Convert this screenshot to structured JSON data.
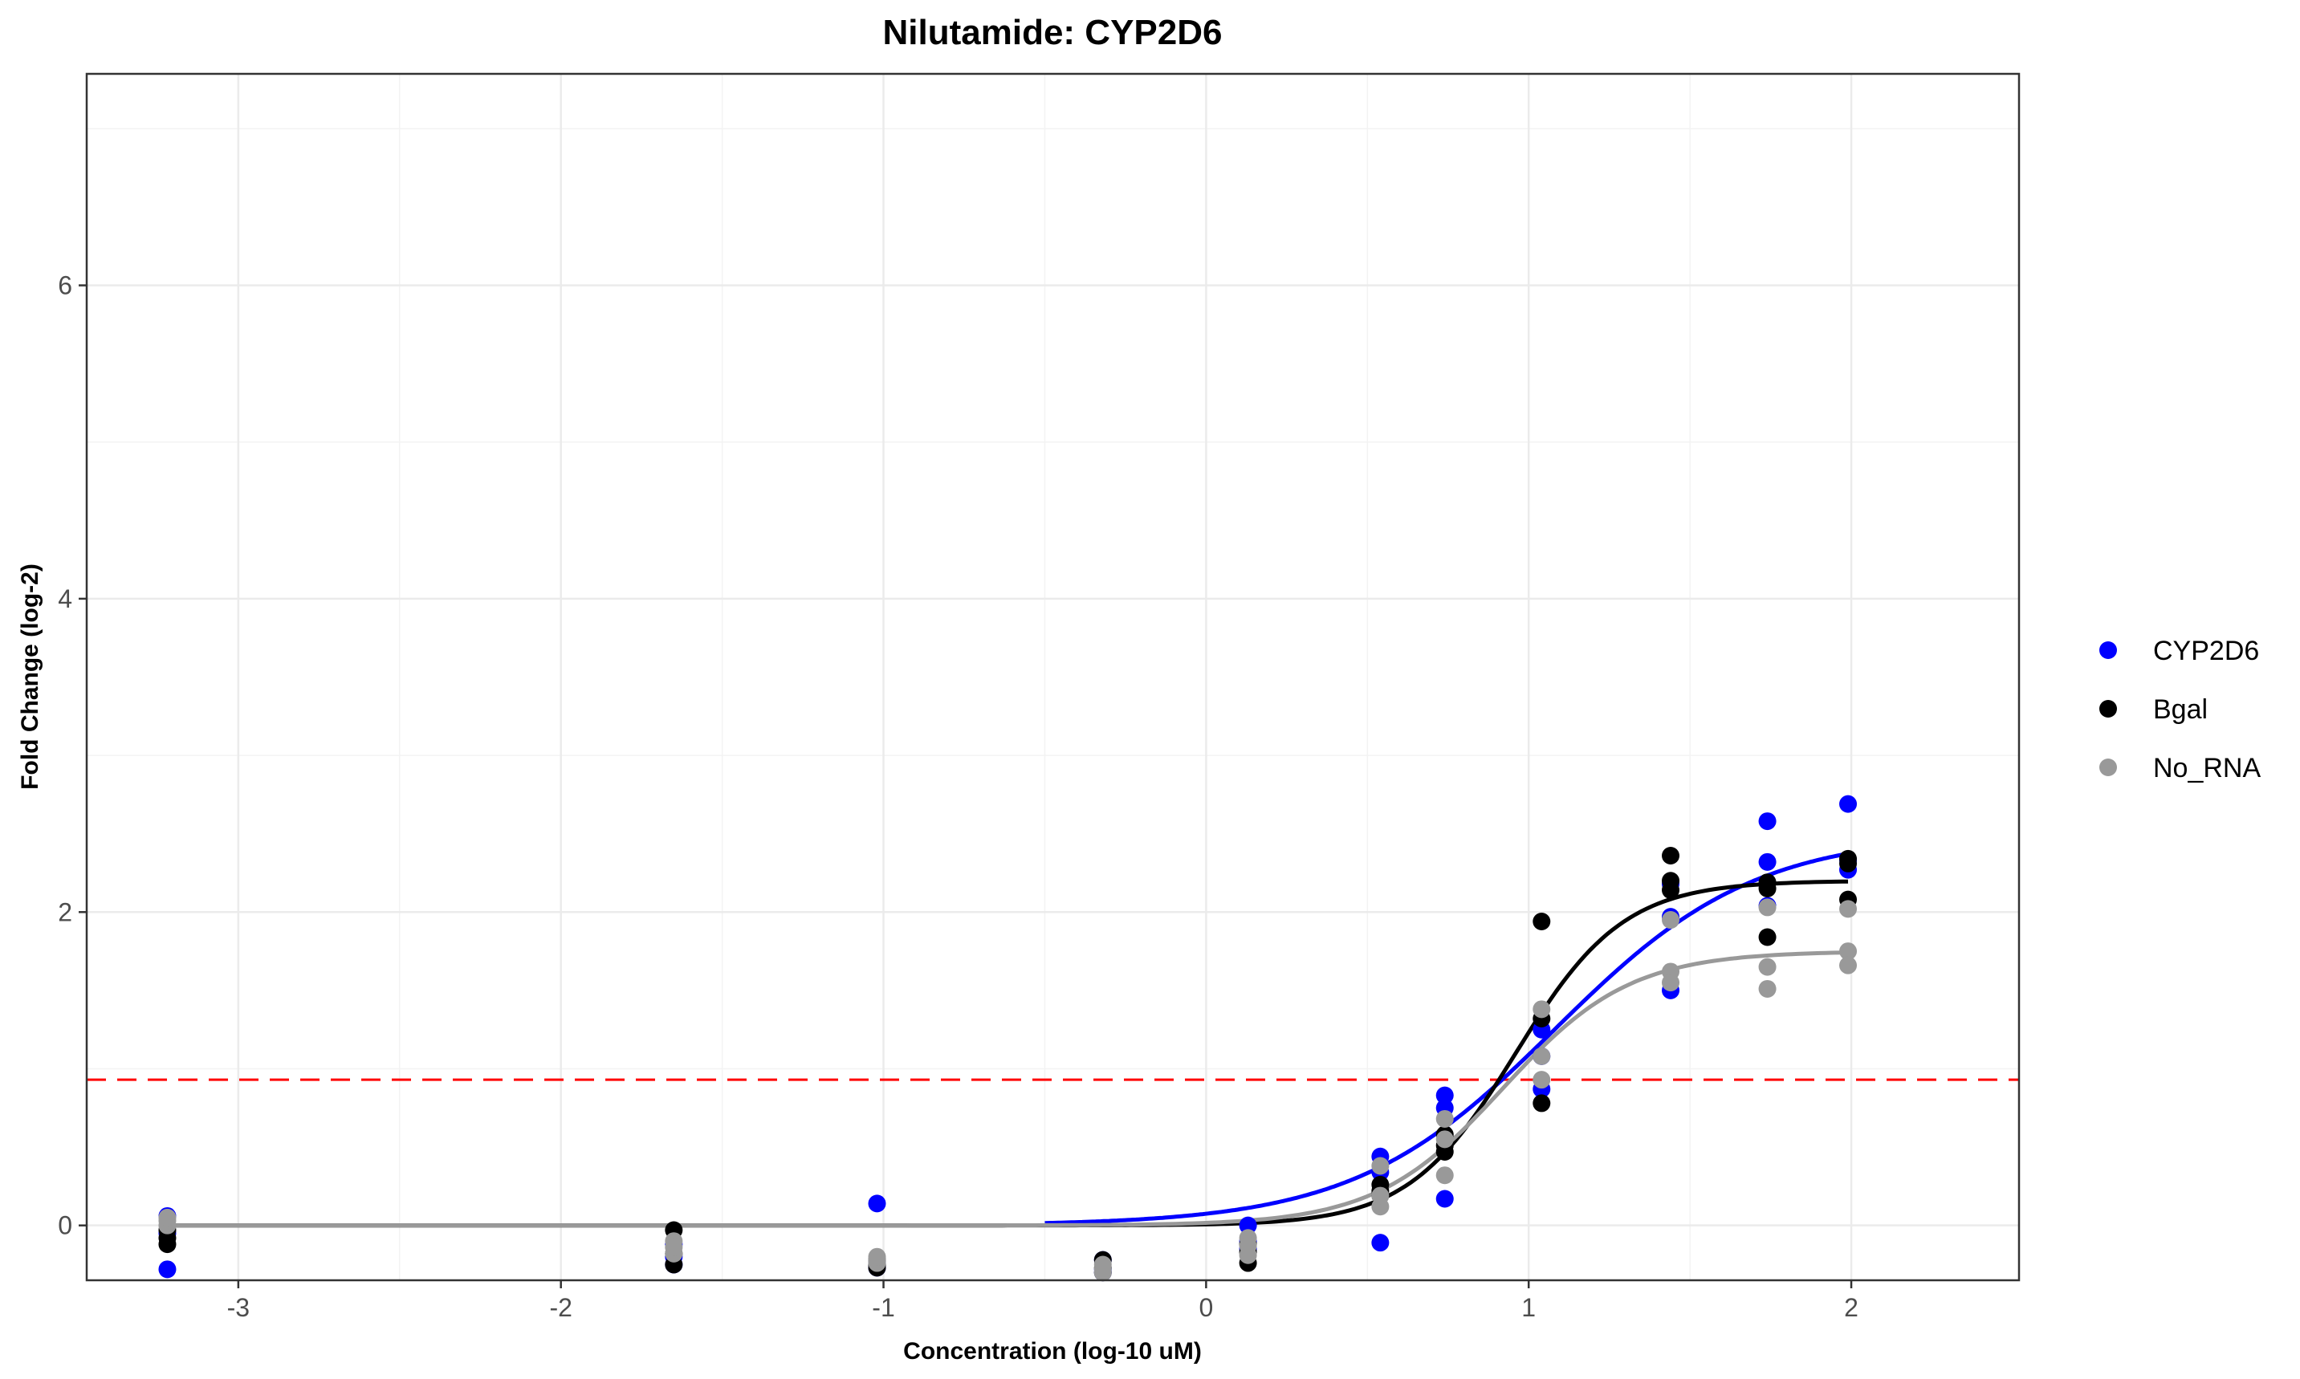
{
  "chart_data": {
    "type": "scatter",
    "title": "Nilutamide: CYP2D6",
    "xlabel": "Concentration (log-10 uM)",
    "ylabel": "Fold Change (log-2)",
    "xlim": [
      -3.47,
      2.52
    ],
    "ylim": [
      -0.35,
      7.35
    ],
    "x_ticks": [
      -3,
      -2,
      -1,
      0,
      1,
      2
    ],
    "y_ticks": [
      0,
      2,
      4,
      6
    ],
    "grid": true,
    "legend_position": "right",
    "threshold_line": {
      "y": 0.93,
      "color": "#ff0000",
      "style": "dashed"
    },
    "series": [
      {
        "name": "CYP2D6",
        "color": "#0000ff",
        "points": [
          [
            -3.22,
            0.06
          ],
          [
            -3.22,
            -0.28
          ],
          [
            -3.22,
            -0.05
          ],
          [
            -1.65,
            -0.12
          ],
          [
            -1.65,
            -0.2
          ],
          [
            -1.65,
            -0.25
          ],
          [
            -1.02,
            0.14
          ],
          [
            -1.02,
            -0.27
          ],
          [
            -1.02,
            -0.24
          ],
          [
            -0.32,
            -0.22
          ],
          [
            -0.32,
            -0.28
          ],
          [
            -0.32,
            -0.3
          ],
          [
            0.13,
            0.0
          ],
          [
            0.13,
            -0.1
          ],
          [
            0.13,
            -0.15
          ],
          [
            0.54,
            0.44
          ],
          [
            0.54,
            -0.11
          ],
          [
            0.54,
            0.34
          ],
          [
            0.74,
            0.83
          ],
          [
            0.74,
            0.75
          ],
          [
            0.74,
            0.17
          ],
          [
            1.04,
            1.25
          ],
          [
            1.04,
            0.87
          ],
          [
            1.04,
            1.08
          ],
          [
            1.44,
            2.18
          ],
          [
            1.44,
            1.5
          ],
          [
            1.44,
            1.97
          ],
          [
            1.74,
            2.58
          ],
          [
            1.74,
            2.32
          ],
          [
            1.74,
            2.04
          ],
          [
            1.99,
            2.69
          ],
          [
            1.99,
            2.27
          ],
          [
            1.99,
            2.33
          ]
        ],
        "curve": {
          "bottom": 0.0,
          "top": 2.5,
          "ec50": 1.08,
          "hill": 1.4,
          "x_range": [
            -0.5,
            1.99
          ]
        }
      },
      {
        "name": "Bgal",
        "color": "#000000",
        "points": [
          [
            -3.22,
            -0.03
          ],
          [
            -3.22,
            -0.12
          ],
          [
            -3.22,
            -0.08
          ],
          [
            -1.65,
            -0.03
          ],
          [
            -1.65,
            -0.25
          ],
          [
            -1.65,
            -0.18
          ],
          [
            -1.02,
            -0.22
          ],
          [
            -1.02,
            -0.27
          ],
          [
            -1.02,
            -0.25
          ],
          [
            -0.32,
            -0.22
          ],
          [
            -0.32,
            -0.27
          ],
          [
            -0.32,
            -0.3
          ],
          [
            0.13,
            -0.17
          ],
          [
            0.13,
            -0.24
          ],
          [
            0.13,
            -0.12
          ],
          [
            0.54,
            0.26
          ],
          [
            0.54,
            0.19
          ],
          [
            0.54,
            0.22
          ],
          [
            0.74,
            0.47
          ],
          [
            0.74,
            0.58
          ],
          [
            0.74,
            0.51
          ],
          [
            1.04,
            1.94
          ],
          [
            1.04,
            1.32
          ],
          [
            1.04,
            0.78
          ],
          [
            1.44,
            2.36
          ],
          [
            1.44,
            2.14
          ],
          [
            1.44,
            2.2
          ],
          [
            1.74,
            2.19
          ],
          [
            1.74,
            1.84
          ],
          [
            1.74,
            2.15
          ],
          [
            1.99,
            2.34
          ],
          [
            1.99,
            2.08
          ],
          [
            1.99,
            2.31
          ]
        ],
        "curve": {
          "bottom": 0.0,
          "top": 2.2,
          "ec50": 0.96,
          "hill": 2.6,
          "x_range": [
            -3.22,
            1.99
          ]
        }
      },
      {
        "name": "No_RNA",
        "color": "#999999",
        "points": [
          [
            -3.22,
            0.03
          ],
          [
            -3.22,
            0.0
          ],
          [
            -3.22,
            0.05
          ],
          [
            -1.65,
            -0.1
          ],
          [
            -1.65,
            -0.18
          ],
          [
            -1.65,
            -0.14
          ],
          [
            -1.02,
            -0.22
          ],
          [
            -1.02,
            -0.24
          ],
          [
            -1.02,
            -0.2
          ],
          [
            -0.32,
            -0.25
          ],
          [
            -0.32,
            -0.3
          ],
          [
            -0.32,
            -0.28
          ],
          [
            0.13,
            -0.08
          ],
          [
            0.13,
            -0.13
          ],
          [
            0.13,
            -0.19
          ],
          [
            0.54,
            0.38
          ],
          [
            0.54,
            0.12
          ],
          [
            0.54,
            0.19
          ],
          [
            0.74,
            0.68
          ],
          [
            0.74,
            0.55
          ],
          [
            0.74,
            0.32
          ],
          [
            1.04,
            1.38
          ],
          [
            1.04,
            1.08
          ],
          [
            1.04,
            0.93
          ],
          [
            1.44,
            1.62
          ],
          [
            1.44,
            1.95
          ],
          [
            1.44,
            1.55
          ],
          [
            1.74,
            1.65
          ],
          [
            1.74,
            1.51
          ],
          [
            1.74,
            2.03
          ],
          [
            1.99,
            2.02
          ],
          [
            1.99,
            1.75
          ],
          [
            1.99,
            1.66
          ]
        ],
        "curve": {
          "bottom": 0.0,
          "top": 1.75,
          "ec50": 0.92,
          "hill": 2.2,
          "x_range": [
            -3.22,
            1.99
          ]
        }
      }
    ]
  }
}
